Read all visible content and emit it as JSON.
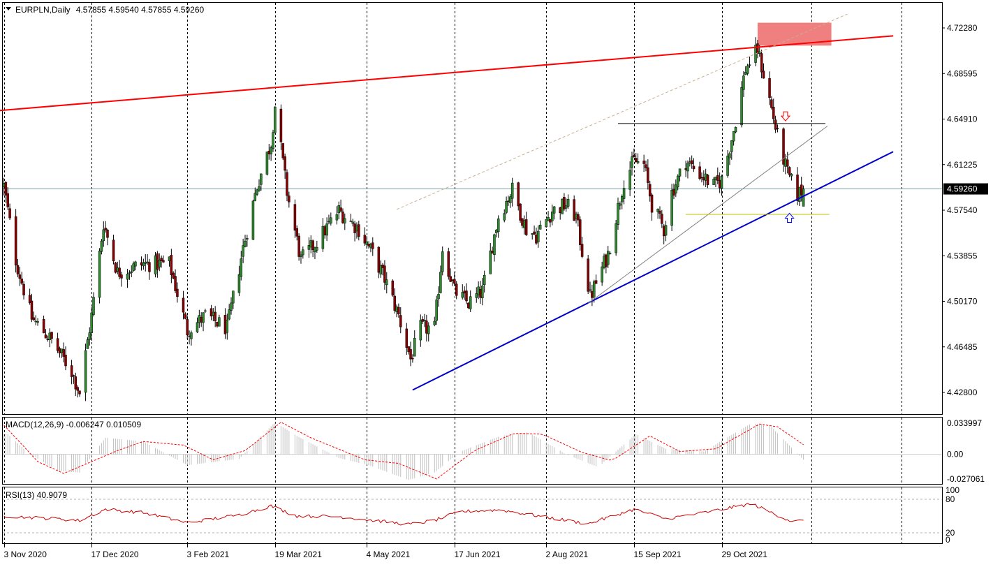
{
  "header": {
    "symbol": "EURPLN,Daily",
    "ohlc": "4.57855 4.59540 4.57855 4.59260"
  },
  "price_axis_labels": [
    "4.72280",
    "4.68595",
    "4.64910",
    "4.61225",
    "4.57540",
    "4.53855",
    "4.50170",
    "4.46485",
    "4.42800"
  ],
  "current_price_label": "4.59260",
  "date_labels": [
    "3 Nov 2020",
    "17 Dec 2020",
    "3 Feb 2021",
    "19 Mar 2021",
    "4 May 2021",
    "17 Jun 2021",
    "2 Aug 2021",
    "15 Sep 2021",
    "29 Oct 2021"
  ],
  "macd": {
    "label": "MACD(12,26,9) -0.006247 0.010509",
    "axis_labels": [
      "0.033997",
      "0.00",
      "-0.027061"
    ]
  },
  "rsi": {
    "label": "RSI(13) 40.9079",
    "axis_labels": [
      "100",
      "80",
      "20",
      "0"
    ]
  },
  "chart_data": [
    {
      "type": "candlestick",
      "title": "EURPLN,Daily",
      "ylim": [
        4.4125,
        4.7355
      ],
      "last": {
        "open": 4.57855,
        "high": 4.5954,
        "low": 4.57855,
        "close": 4.5926
      },
      "close_anchors": [
        [
          "3 Nov 2020",
          4.595
        ],
        [
          "9 Nov 2020",
          4.535
        ],
        [
          "17 Nov 2020",
          4.488
        ],
        [
          "27 Nov 2020",
          4.47
        ],
        [
          "7 Dec 2020",
          4.445
        ],
        [
          "11 Dec 2020",
          4.428
        ],
        [
          "17 Dec 2020",
          4.49
        ],
        [
          "23 Dec 2020",
          4.565
        ],
        [
          "30 Dec 2020",
          4.525
        ],
        [
          "12 Jan 2021",
          4.532
        ],
        [
          "25 Jan 2021",
          4.532
        ],
        [
          "3 Feb 2021",
          4.478
        ],
        [
          "12 Feb 2021",
          4.49
        ],
        [
          "23 Feb 2021",
          4.48
        ],
        [
          "3 Mar 2021",
          4.545
        ],
        [
          "10 Mar 2021",
          4.595
        ],
        [
          "17 Mar 2021",
          4.63
        ],
        [
          "19 Mar 2021",
          4.66
        ],
        [
          "25 Mar 2021",
          4.59
        ],
        [
          "1 Apr 2021",
          4.535
        ],
        [
          "9 Apr 2021",
          4.55
        ],
        [
          "20 Apr 2021",
          4.575
        ],
        [
          "30 Apr 2021",
          4.56
        ],
        [
          "7 May 2021",
          4.54
        ],
        [
          "13 May 2021",
          4.52
        ],
        [
          "20 May 2021",
          4.49
        ],
        [
          "26 May 2021",
          4.455
        ],
        [
          "31 May 2021",
          4.48
        ],
        [
          "7 Jun 2021",
          4.48
        ],
        [
          "11 Jun 2021",
          4.545
        ],
        [
          "17 Jun 2021",
          4.51
        ],
        [
          "24 Jun 2021",
          4.5
        ],
        [
          "1 Jul 2021",
          4.51
        ],
        [
          "9 Jul 2021",
          4.57
        ],
        [
          "16 Jul 2021",
          4.592
        ],
        [
          "23 Jul 2021",
          4.56
        ],
        [
          "28 Jul 2021",
          4.555
        ],
        [
          "5 Aug 2021",
          4.575
        ],
        [
          "12 Aug 2021",
          4.58
        ],
        [
          "17 Aug 2021",
          4.57
        ],
        [
          "24 Aug 2021",
          4.505
        ],
        [
          "2 Sep 2021",
          4.54
        ],
        [
          "10 Sep 2021",
          4.6
        ],
        [
          "15 Sep 2021",
          4.615
        ],
        [
          "20 Sep 2021",
          4.612
        ],
        [
          "24 Sep 2021",
          4.58
        ],
        [
          "30 Sep 2021",
          4.56
        ],
        [
          "4 Oct 2021",
          4.59
        ],
        [
          "11 Oct 2021",
          4.615
        ],
        [
          "18 Oct 2021",
          4.605
        ],
        [
          "25 Oct 2021",
          4.595
        ],
        [
          "29 Oct 2021",
          4.6
        ],
        [
          "4 Nov 2021",
          4.64
        ],
        [
          "10 Nov 2021",
          4.69
        ],
        [
          "16 Nov 2021",
          4.705
        ],
        [
          "22 Nov 2021",
          4.665
        ],
        [
          "26 Nov 2021",
          4.635
        ],
        [
          "1 Dec 2021",
          4.605
        ],
        [
          "6 Dec 2021",
          4.588
        ],
        [
          "9 Dec 2021",
          4.5926
        ]
      ],
      "trendlines": [
        {
          "color": "#ff0000",
          "from": [
            "1 Nov 2020",
            4.656
          ],
          "to": [
            "23 Jan 2022",
            4.7164
          ]
        },
        {
          "color": "#0000cd",
          "from": [
            "27 May 2021",
            4.43
          ],
          "to": [
            "23 Jan 2022",
            4.6227
          ]
        },
        {
          "color": "#808080",
          "from": [
            "23 Aug 2021",
            4.5
          ],
          "to": [
            "21 Dec 2021",
            4.6434
          ]
        },
        {
          "color": "#c8b090",
          "dashed": true,
          "from": [
            "19 May 2021",
            4.576
          ],
          "to": [
            "31 Dec 2021",
            4.734
          ]
        },
        {
          "color": "#000000",
          "from": [
            "7 Sep 2021",
            4.6455
          ],
          "to": [
            "20 Dec 2021",
            4.6455
          ]
        },
        {
          "color": "#c0c000",
          "from": [
            "11 Oct 2021",
            4.572
          ],
          "to": [
            "22 Dec 2021",
            4.572
          ]
        }
      ],
      "zone": {
        "color": "#f08080",
        "x": [
          "16 Nov 2021",
          "23 Dec 2021"
        ],
        "y": [
          4.7085,
          4.727
        ]
      },
      "arrows": [
        {
          "direction": "down",
          "color": "#ff0000",
          "at": [
            "30 Nov 2021",
            4.651
          ]
        },
        {
          "direction": "up",
          "color": "#0000ff",
          "at": [
            "2 Dec 2021",
            4.5695
          ]
        }
      ]
    },
    {
      "type": "histogram+line",
      "title": "MACD(12,26,9)",
      "main": -0.006247,
      "signal": 0.010509,
      "ylim": [
        -0.0352,
        0.039
      ],
      "main_anchors": [
        [
          "5 Nov 2020",
          0.022
        ],
        [
          "15 Nov 2020",
          0.002
        ],
        [
          "30 Nov 2020",
          -0.018
        ],
        [
          "11 Dec 2020",
          -0.02
        ],
        [
          "24 Dec 2020",
          0.018
        ],
        [
          "12 Jan 2021",
          0.014
        ],
        [
          "3 Feb 2021",
          -0.012
        ],
        [
          "1 Mar 2021",
          -0.005
        ],
        [
          "19 Mar 2021",
          0.035
        ],
        [
          "30 Mar 2021",
          0.02
        ],
        [
          "20 Apr 2021",
          -0.004
        ],
        [
          "5 May 2021",
          -0.012
        ],
        [
          "25 May 2021",
          -0.028
        ],
        [
          "7 Jun 2021",
          -0.02
        ],
        [
          "20 Jun 2021",
          0.003
        ],
        [
          "10 Jul 2021",
          0.02
        ],
        [
          "24 Jul 2021",
          0.024
        ],
        [
          "12 Aug 2021",
          0.0
        ],
        [
          "28 Aug 2021",
          -0.014
        ],
        [
          "16 Sep 2021",
          0.022
        ],
        [
          "1 Oct 2021",
          0.006
        ],
        [
          "20 Oct 2021",
          0.003
        ],
        [
          "13 Nov 2021",
          0.034
        ],
        [
          "22 Nov 2021",
          0.032
        ],
        [
          "9 Dec 2021",
          -0.006
        ]
      ],
      "signal_anchors": [
        [
          "3 Nov 2020",
          0.032
        ],
        [
          "20 Nov 2020",
          -0.008
        ],
        [
          "3 Dec 2020",
          -0.021
        ],
        [
          "30 Dec 2020",
          0.004
        ],
        [
          "12 Jan 2021",
          0.014
        ],
        [
          "1 Feb 2021",
          0.01
        ],
        [
          "16 Feb 2021",
          -0.006
        ],
        [
          "4 Mar 2021",
          0.004
        ],
        [
          "22 Mar 2021",
          0.035
        ],
        [
          "6 Apr 2021",
          0.018
        ],
        [
          "3 May 2021",
          -0.006
        ],
        [
          "20 May 2021",
          -0.01
        ],
        [
          "8 Jun 2021",
          -0.027
        ],
        [
          "27 Jun 2021",
          0.004
        ],
        [
          "17 Jul 2021",
          0.023
        ],
        [
          "31 Jul 2021",
          0.022
        ],
        [
          "20 Aug 2021",
          0.002
        ],
        [
          "4 Sep 2021",
          -0.007
        ],
        [
          "23 Sep 2021",
          0.02
        ],
        [
          "8 Oct 2021",
          0.003
        ],
        [
          "26 Oct 2021",
          0.006
        ],
        [
          "17 Nov 2021",
          0.033
        ],
        [
          "26 Nov 2021",
          0.03
        ],
        [
          "9 Dec 2021",
          0.0105
        ]
      ]
    },
    {
      "type": "line",
      "title": "RSI(13)",
      "value": 40.9079,
      "ylim": [
        0,
        100
      ],
      "levels": [
        80,
        20
      ],
      "anchors": [
        [
          "3 Nov 2020",
          50
        ],
        [
          "30 Nov 2020",
          45
        ],
        [
          "11 Dec 2020",
          42
        ],
        [
          "24 Dec 2020",
          62
        ],
        [
          "12 Jan 2021",
          56
        ],
        [
          "3 Feb 2021",
          38
        ],
        [
          "1 Mar 2021",
          52
        ],
        [
          "17 Mar 2021",
          68
        ],
        [
          "30 Mar 2021",
          50
        ],
        [
          "20 Apr 2021",
          49
        ],
        [
          "25 May 2021",
          35
        ],
        [
          "7 Jun 2021",
          42
        ],
        [
          "20 Jun 2021",
          58
        ],
        [
          "10 Jul 2021",
          61
        ],
        [
          "23 Aug 2021",
          36
        ],
        [
          "15 Sep 2021",
          62
        ],
        [
          "1 Oct 2021",
          45
        ],
        [
          "20 Oct 2021",
          56
        ],
        [
          "13 Nov 2021",
          72
        ],
        [
          "2 Dec 2021",
          42
        ],
        [
          "9 Dec 2021",
          40.9
        ]
      ]
    }
  ]
}
